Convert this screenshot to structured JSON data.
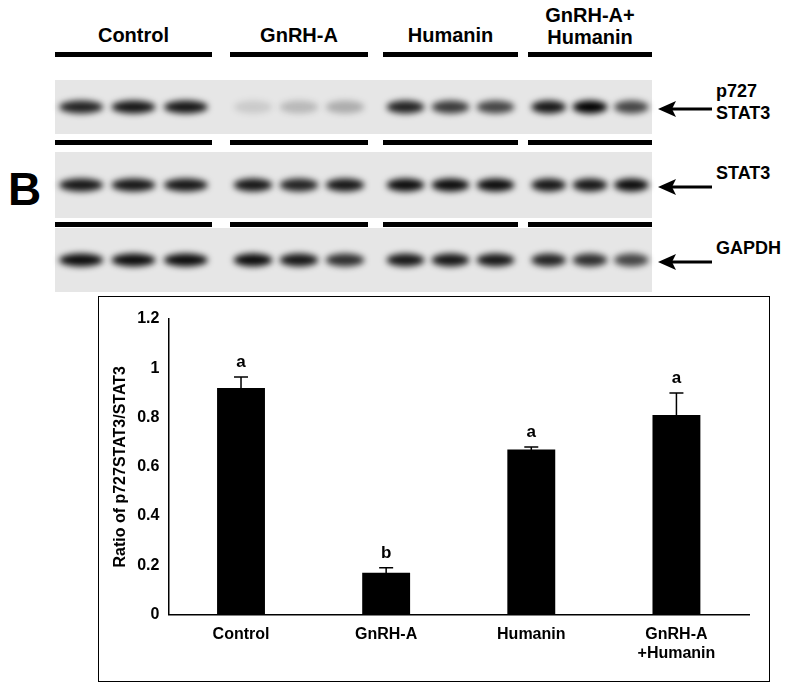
{
  "panel_label": "B",
  "blot": {
    "groups": [
      "Control",
      "GnRH-A",
      "Humanin",
      "GnRH-A+ Humanin"
    ],
    "rows": [
      {
        "label": "p727 STAT3",
        "intensity": [
          0.85,
          0.9,
          0.9,
          0.12,
          0.2,
          0.25,
          0.85,
          0.75,
          0.7,
          0.9,
          1.0,
          0.7
        ]
      },
      {
        "label": "STAT3",
        "intensity": [
          0.9,
          0.9,
          0.9,
          0.9,
          0.85,
          0.9,
          0.95,
          0.95,
          0.95,
          0.9,
          0.9,
          0.95
        ]
      },
      {
        "label": "GAPDH",
        "intensity": [
          0.95,
          0.95,
          0.95,
          0.95,
          0.9,
          0.8,
          0.9,
          0.9,
          0.9,
          0.85,
          0.8,
          0.7
        ]
      }
    ]
  },
  "chart_data": {
    "type": "bar",
    "categories": [
      "Control",
      "GnRH-A",
      "Humanin",
      "GnRH-A +Humanin"
    ],
    "values": [
      0.92,
      0.17,
      0.67,
      0.81
    ],
    "errors": [
      0.045,
      0.02,
      0.01,
      0.09
    ],
    "letters": [
      "a",
      "b",
      "a",
      "a"
    ],
    "y_label": "Ratio of p727STAT3/STAT3",
    "color": "#000000",
    "ylim": [
      0,
      1.2
    ],
    "yticks": [
      0,
      0.2,
      0.4,
      0.6,
      0.8,
      1,
      1.2
    ],
    "grid": false
  }
}
